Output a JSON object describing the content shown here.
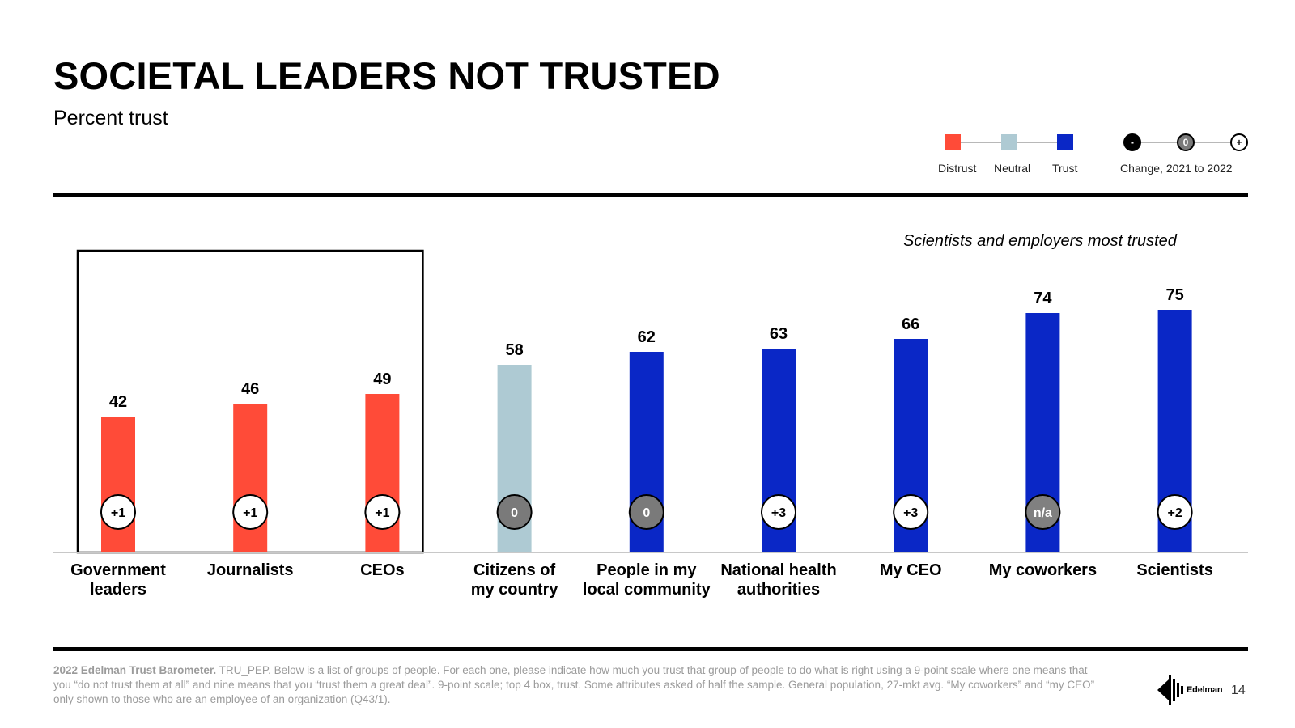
{
  "header": {
    "title": "SOCIETAL LEADERS NOT TRUSTED",
    "subtitle": "Percent trust"
  },
  "legend": {
    "distrust": {
      "label": "Distrust",
      "color": "#ff4b38"
    },
    "neutral": {
      "label": "Neutral",
      "color": "#aecad3"
    },
    "trust": {
      "label": "Trust",
      "color": "#0a27c6"
    },
    "change_label": "Change, 2021 to 2022",
    "change_symbols": {
      "negative": "-",
      "zero": "0",
      "positive": "+"
    }
  },
  "callout": "Scientists and employers most trusted",
  "chart_data": {
    "type": "bar",
    "title": "SOCIETAL LEADERS NOT TRUSTED",
    "subtitle": "Percent trust",
    "ylim": [
      0,
      80
    ],
    "grid": false,
    "legend_position": "top-right",
    "categories": [
      "Government leaders",
      "Journalists",
      "CEOs",
      "Citizens of my country",
      "People in my local community",
      "National health authorities",
      "My CEO",
      "My coworkers",
      "Scientists"
    ],
    "category_lines": [
      [
        "Government",
        "leaders"
      ],
      [
        "Journalists"
      ],
      [
        "CEOs"
      ],
      [
        "Citizens of",
        "my country"
      ],
      [
        "People in my",
        "local community"
      ],
      [
        "National health",
        "authorities"
      ],
      [
        "My CEO"
      ],
      [
        "My coworkers"
      ],
      [
        "Scientists"
      ]
    ],
    "values": [
      42,
      46,
      49,
      58,
      62,
      63,
      66,
      74,
      75
    ],
    "levels": [
      "distrust",
      "distrust",
      "distrust",
      "neutral",
      "trust",
      "trust",
      "trust",
      "trust",
      "trust"
    ],
    "changes": [
      "+1",
      "+1",
      "+1",
      "0",
      "0",
      "+3",
      "+3",
      "n/a",
      "+2"
    ],
    "change_types": [
      "positive",
      "positive",
      "positive",
      "zero",
      "zero",
      "positive",
      "positive",
      "na",
      "positive"
    ],
    "highlighted_categories": [
      "Government leaders",
      "Journalists",
      "CEOs"
    ]
  },
  "footnote": {
    "source": "2022 Edelman Trust Barometer.",
    "text": " TRU_PEP. Below is a list of groups of people. For each one, please indicate how much you trust that group of people to do what is right using a 9-point scale where one means that you “do not trust them at all” and nine means that you “trust them a great deal”. 9-point scale; top 4 box, trust. Some attributes asked of half the sample. General population, 27-mkt avg. “My coworkers” and “my CEO” only shown to those who are an employee of an organization (Q43/1)."
  },
  "brand": {
    "name": "Edelman"
  },
  "page_number": "14"
}
